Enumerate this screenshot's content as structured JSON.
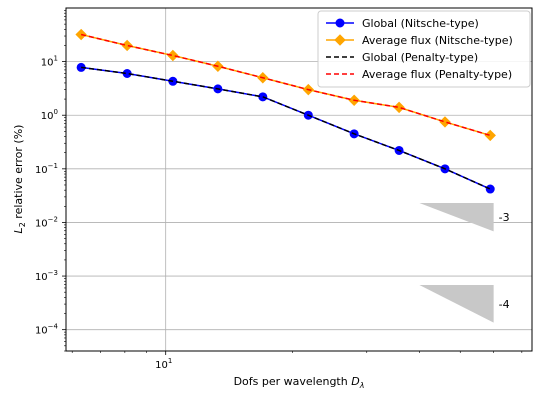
{
  "chart_data": {
    "type": "line",
    "xscale": "log",
    "yscale": "log",
    "xlim": [
      5.8,
      74
    ],
    "ylim": [
      4e-05,
      100
    ],
    "grid": true,
    "xlabel_pre": "Dofs per wavelength ",
    "xlabel_sym": "D",
    "xlabel_sub": "λ",
    "ylabel_sym": "L",
    "ylabel_sub": "2",
    "ylabel_post": " relative error (%)",
    "x_ticks": [
      {
        "value": 10,
        "base": "10",
        "exp": "1"
      }
    ],
    "y_ticks": [
      {
        "value": 0.0001,
        "base": "10",
        "exp": "−4"
      },
      {
        "value": 0.001,
        "base": "10",
        "exp": "−3"
      },
      {
        "value": 0.01,
        "base": "10",
        "exp": "−2"
      },
      {
        "value": 0.1,
        "base": "10",
        "exp": "−1"
      },
      {
        "value": 1,
        "base": "10",
        "exp": "0"
      },
      {
        "value": 10,
        "base": "10",
        "exp": "1"
      }
    ],
    "legend_position": "top-right",
    "series": [
      {
        "name": "Global (Nitsche-type)",
        "color": "#0000ff",
        "linestyle": "solid",
        "marker": "circle",
        "x": [
          6.3,
          8.1,
          10.4,
          13.3,
          17.0,
          21.8,
          28.0,
          35.8,
          46.0,
          58.9
        ],
        "y": [
          7.8,
          6.0,
          4.3,
          3.1,
          2.2,
          1.0,
          0.45,
          0.22,
          0.1,
          0.042
        ]
      },
      {
        "name": "Average flux (Nitsche-type)",
        "color": "#ffa500",
        "linestyle": "solid",
        "marker": "diamond",
        "x": [
          6.3,
          8.1,
          10.4,
          13.3,
          17.0,
          21.8,
          28.0,
          35.8,
          46.0,
          58.9
        ],
        "y": [
          32,
          20,
          13,
          8.2,
          5.0,
          3.0,
          1.9,
          1.4,
          0.75,
          0.42
        ]
      },
      {
        "name": "Global (Penalty-type)",
        "color": "#000000",
        "linestyle": "dashed",
        "marker": "none",
        "x": [
          6.3,
          8.1,
          10.4,
          13.3,
          17.0,
          21.8,
          28.0,
          35.8,
          46.0,
          58.9
        ],
        "y": [
          7.8,
          6.0,
          4.3,
          3.1,
          2.2,
          1.0,
          0.45,
          0.22,
          0.1,
          0.042
        ]
      },
      {
        "name": "Average flux (Penalty-type)",
        "color": "#ff0000",
        "linestyle": "dashed",
        "marker": "none",
        "x": [
          6.3,
          8.1,
          10.4,
          13.3,
          17.0,
          21.8,
          28.0,
          35.8,
          46.0,
          58.9
        ],
        "y": [
          32,
          20,
          13,
          8.2,
          5.0,
          3.0,
          1.9,
          1.4,
          0.75,
          0.42
        ]
      }
    ],
    "slope_triangles": [
      {
        "label": "-3",
        "x_start": 40,
        "x_end": 60,
        "y_start": 0.023,
        "y_end": 0.0068
      },
      {
        "label": "-4",
        "x_start": 40,
        "x_end": 60,
        "y_start": 0.00068,
        "y_end": 0.000135
      }
    ]
  }
}
